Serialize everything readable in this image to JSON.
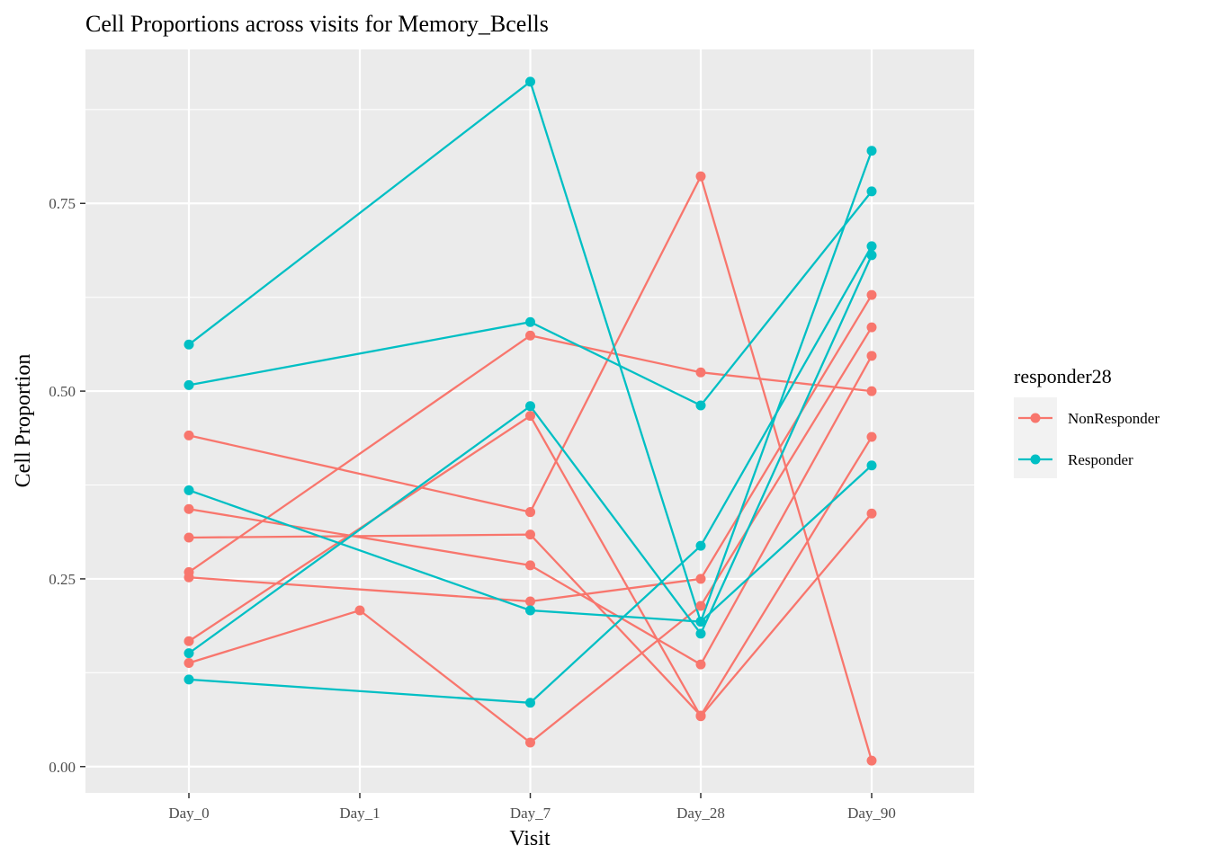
{
  "chart_data": {
    "type": "line",
    "title": "Cell Proportions across visits for Memory_Bcells",
    "xlabel": "Visit",
    "ylabel": "Cell Proportion",
    "categories": [
      "Day_0",
      "Day_1",
      "Day_7",
      "Day_28",
      "Day_90"
    ],
    "ylim": [
      -0.035,
      0.955
    ],
    "yticks": [
      0.0,
      0.25,
      0.5,
      0.75
    ],
    "ytick_labels": [
      "0.00",
      "0.25",
      "0.50",
      "0.75"
    ],
    "grid": true,
    "legend": {
      "title": "responder28",
      "position": "right",
      "entries": [
        "NonResponder",
        "Responder"
      ]
    },
    "colors": {
      "NonResponder": "#F8766D",
      "Responder": "#00BFC4",
      "panel": "#EBEBEB",
      "grid": "#FFFFFF"
    },
    "series": [
      {
        "group": "NonResponder",
        "values": [
          0.441,
          null,
          0.339,
          null,
          null
        ]
      },
      {
        "group": "NonResponder",
        "values": [
          0.343,
          null,
          0.268,
          0.136,
          0.547
        ]
      },
      {
        "group": "NonResponder",
        "values": [
          0.305,
          null,
          0.309,
          0.068,
          0.439
        ]
      },
      {
        "group": "NonResponder",
        "values": [
          0.259,
          null,
          0.574,
          0.525,
          0.5
        ]
      },
      {
        "group": "NonResponder",
        "values": [
          0.252,
          null,
          0.22,
          0.25,
          0.628
        ]
      },
      {
        "group": "NonResponder",
        "values": [
          0.167,
          null,
          0.467,
          0.067,
          0.337
        ]
      },
      {
        "group": "NonResponder",
        "values": [
          0.138,
          0.208,
          0.032,
          0.214,
          0.585
        ]
      },
      {
        "group": "NonResponder",
        "values": [
          null,
          null,
          0.339,
          0.786,
          0.008
        ]
      },
      {
        "group": "Responder",
        "values": [
          0.562,
          null,
          0.912,
          0.193,
          0.82
        ]
      },
      {
        "group": "Responder",
        "values": [
          0.508,
          null,
          0.592,
          0.481,
          0.766
        ]
      },
      {
        "group": "Responder",
        "values": [
          0.368,
          null,
          0.208,
          0.193,
          0.401
        ]
      },
      {
        "group": "Responder",
        "values": [
          0.151,
          null,
          0.48,
          0.177,
          0.681
        ]
      },
      {
        "group": "Responder",
        "values": [
          0.116,
          null,
          0.085,
          0.294,
          0.693
        ]
      }
    ]
  }
}
